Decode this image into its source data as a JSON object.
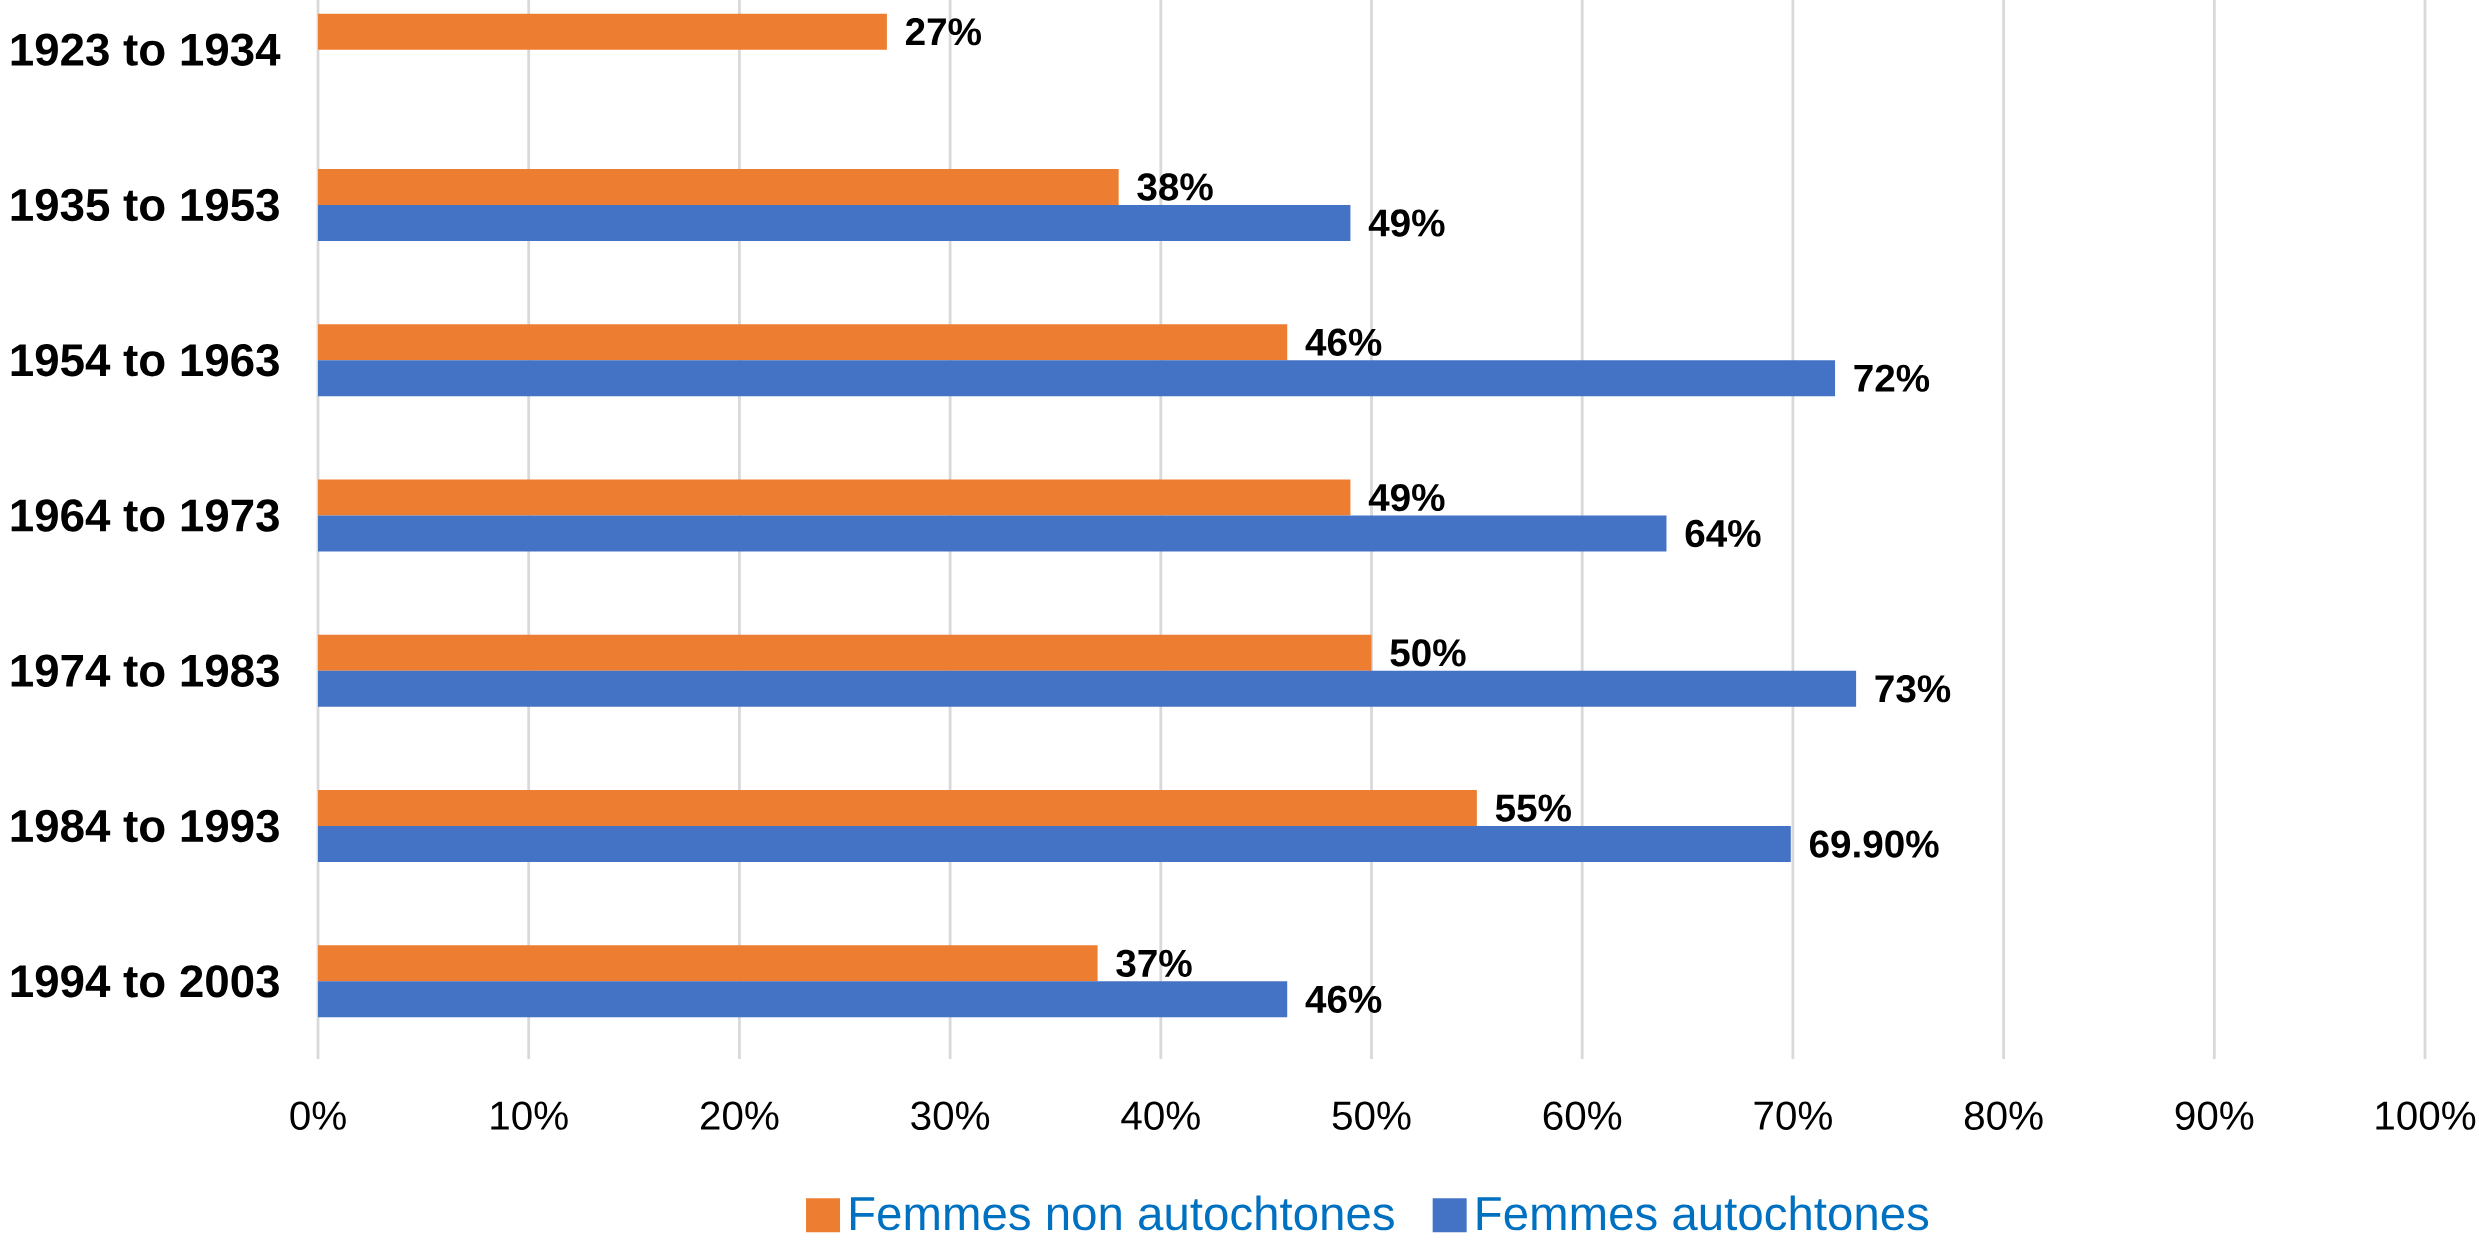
{
  "chart_data": {
    "type": "bar",
    "orientation": "horizontal",
    "categories": [
      "1923 to 1934",
      "1935 to 1953",
      "1954 to 1963",
      "1964 to 1973",
      "1974 to 1983",
      "1984 to 1993",
      "1994 to 2003"
    ],
    "series": [
      {
        "name": "Femmes non autochtones",
        "color": "#ed7d31",
        "values": [
          27,
          38,
          46,
          49,
          50,
          55,
          37
        ],
        "value_labels": [
          "27%",
          "38%",
          "46%",
          "49%",
          "50%",
          "55%",
          "37%"
        ]
      },
      {
        "name": "Femmes autochtones",
        "color": "#4472c4",
        "values": [
          null,
          49,
          72,
          64,
          73,
          69.9,
          46
        ],
        "value_labels": [
          null,
          "49%",
          "72%",
          "64%",
          "73%",
          "69.90%",
          "46%"
        ]
      }
    ],
    "xlim": [
      0,
      100
    ],
    "xticks": [
      {
        "value": 0,
        "label": "0%"
      },
      {
        "value": 10,
        "label": "10%"
      },
      {
        "value": 20,
        "label": "20%"
      },
      {
        "value": 30,
        "label": "30%"
      },
      {
        "value": 40,
        "label": "40%"
      },
      {
        "value": 50,
        "label": "50%"
      },
      {
        "value": 60,
        "label": "60%"
      },
      {
        "value": 70,
        "label": "70%"
      },
      {
        "value": 80,
        "label": "80%"
      },
      {
        "value": 90,
        "label": "90%"
      },
      {
        "value": 100,
        "label": "100%"
      }
    ],
    "grid": "x",
    "legend": "bottom"
  }
}
